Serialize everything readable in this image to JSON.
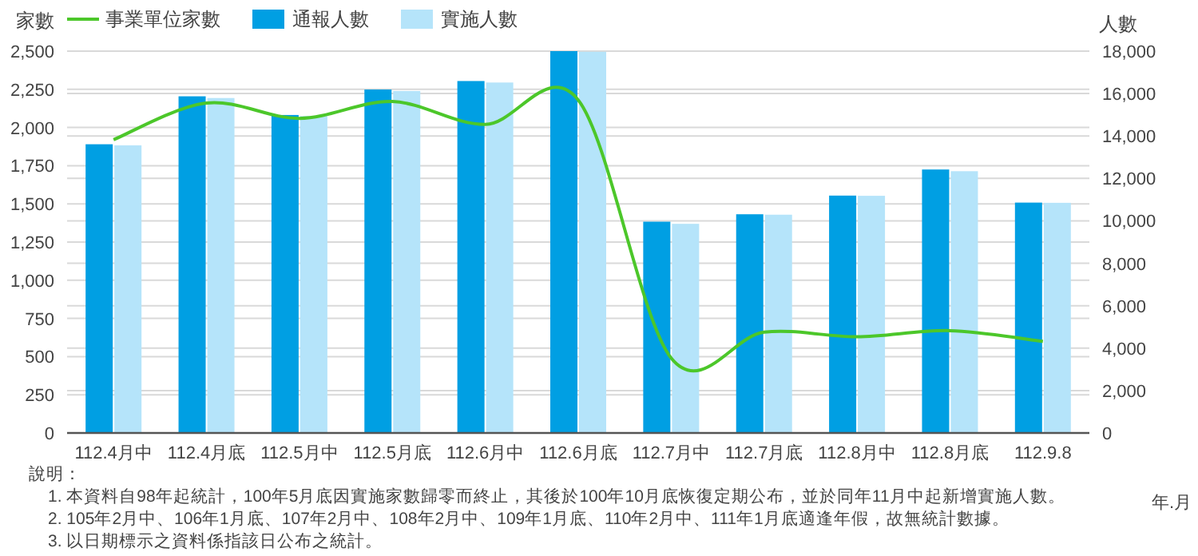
{
  "chart_data": {
    "type": "bar",
    "ylabel": "家數",
    "y2label": "人數",
    "xlabel": "年.月",
    "categories": [
      "112.4月中",
      "112.4月底",
      "112.5月中",
      "112.5月底",
      "112.6月中",
      "112.6月底",
      "112.7月中",
      "112.7月底",
      "112.8月中",
      "112.8月底",
      "112.9.8"
    ],
    "series": [
      {
        "name": "事業單位家數",
        "type": "line",
        "color": "#4cc72a",
        "values": [
          1920,
          2160,
          2060,
          2170,
          2020,
          2180,
          490,
          660,
          630,
          670,
          600
        ]
      },
      {
        "name": "通報人數",
        "axis": "y2",
        "color": "#009fe3",
        "values": [
          13610,
          15870,
          14990,
          16190,
          16590,
          18000,
          9960,
          10310,
          11190,
          12420,
          10860
        ]
      },
      {
        "name": "實施人數",
        "axis": "y2",
        "color": "#b5e4fa",
        "values": [
          13560,
          15790,
          14940,
          16120,
          16520,
          17970,
          9860,
          10290,
          11180,
          12340,
          10850
        ]
      }
    ],
    "ylim": [
      0,
      2500
    ],
    "yticks": [
      {
        "value": 0,
        "label": "0"
      },
      {
        "value": 250,
        "label": "250"
      },
      {
        "value": 500,
        "label": "500"
      },
      {
        "value": 750,
        "label": "750"
      },
      {
        "value": 1000,
        "label": "1,000"
      },
      {
        "value": 1250,
        "label": "1,250"
      },
      {
        "value": 1500,
        "label": "1,500"
      },
      {
        "value": 1750,
        "label": "1,750"
      },
      {
        "value": 2000,
        "label": "2,000"
      },
      {
        "value": 2250,
        "label": "2,250"
      },
      {
        "value": 2500,
        "label": "2,500"
      }
    ],
    "y2lim": [
      0,
      18000
    ],
    "y2ticks": [
      {
        "value": 0,
        "label": "0"
      },
      {
        "value": 2000,
        "label": "2,000"
      },
      {
        "value": 4000,
        "label": "4,000"
      },
      {
        "value": 6000,
        "label": "6,000"
      },
      {
        "value": 8000,
        "label": "8,000"
      },
      {
        "value": 10000,
        "label": "10,000"
      },
      {
        "value": 12000,
        "label": "12,000"
      },
      {
        "value": 14000,
        "label": "14,000"
      },
      {
        "value": 16000,
        "label": "16,000"
      },
      {
        "value": 18000,
        "label": "18,000"
      }
    ],
    "grid": true,
    "legend": "top left",
    "line_style": "solid",
    "annotations": [
      "說明：",
      "1. 本資料自98年起統計，100年5月底因實施家數歸零而終止，其後於100年10月底恢復定期公布，並於同年11月中起新增實施人數。",
      "2. 105年2月中、106年1月底、107年2月中、108年2月中、109年1月底、110年2月中、111年1月底適逢年假，故無統計數據。",
      "3. 以日期標示之資料係指該日公布之統計。"
    ]
  }
}
